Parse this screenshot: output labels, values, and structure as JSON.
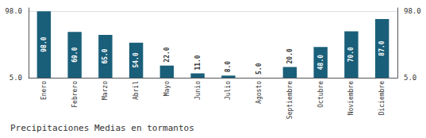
{
  "chart_data": {
    "type": "bar",
    "title": "Precipitaciones Medias en tormantos",
    "categories": [
      "Enero",
      "Febrero",
      "Marzo",
      "Abril",
      "Mayo",
      "Junio",
      "Julio",
      "Agosto",
      "Septiembre",
      "Octubre",
      "Noviembre",
      "Diciembre"
    ],
    "values": [
      98.0,
      69.0,
      65.0,
      54.0,
      22.0,
      11.0,
      8.0,
      5.0,
      20.0,
      48.0,
      70.0,
      87.0
    ],
    "value_labels": [
      "98.0",
      "69.0",
      "65.0",
      "54.0",
      "22.0",
      "11.0",
      "8.0",
      "5.0",
      "20.0",
      "48.0",
      "70.0",
      "87.0"
    ],
    "data_labels": true,
    "color": "#1a5f7a",
    "ylim": [
      5.0,
      102.65
    ],
    "yticks": [
      {
        "value": 5.0,
        "label": "5.0"
      },
      {
        "value": 98.0,
        "label": "98.0"
      }
    ],
    "grid": true
  }
}
